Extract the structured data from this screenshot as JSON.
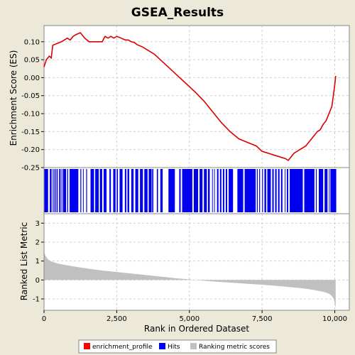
{
  "chart_data": {
    "type": "line",
    "title": "GSEA_Results",
    "x_axis": {
      "label": "Rank in Ordered Dataset",
      "range": [
        0,
        10500
      ],
      "ticks": [
        0,
        2500,
        5000,
        7500,
        10000
      ],
      "tick_labels": [
        "0",
        "2,500",
        "5,000",
        "7,500",
        "10,000"
      ]
    },
    "panels": {
      "enrichment": {
        "ylabel": "Enrichment Score (ES)",
        "ylim": [
          -0.25,
          0.145
        ],
        "yticks": [
          0.1,
          0.05,
          0.0,
          -0.05,
          -0.1,
          -0.15,
          -0.2,
          -0.25
        ],
        "ytick_labels": [
          "0.10",
          "0.05",
          "0.00",
          "-0.05",
          "-0.10",
          "-0.15",
          "-0.20",
          "-0.25"
        ],
        "grid": true,
        "line_color": "#dd0000",
        "profile": {
          "x": [
            0,
            80,
            180,
            250,
            300,
            450,
            600,
            800,
            900,
            1000,
            1100,
            1250,
            1400,
            1550,
            1700,
            1850,
            2000,
            2100,
            2200,
            2300,
            2400,
            2500,
            2600,
            2700,
            2800,
            2900,
            3000,
            3100,
            3200,
            3400,
            3600,
            3800,
            4000,
            4200,
            4400,
            4600,
            4800,
            5000,
            5200,
            5500,
            5800,
            6100,
            6400,
            6700,
            7000,
            7300,
            7500,
            7700,
            7900,
            8100,
            8300,
            8400,
            8500,
            8600,
            8800,
            9000,
            9200,
            9400,
            9500,
            9600,
            9700,
            9800,
            9900,
            9950,
            10000,
            10030
          ],
          "y": [
            0.03,
            0.05,
            0.06,
            0.055,
            0.09,
            0.095,
            0.1,
            0.11,
            0.105,
            0.115,
            0.12,
            0.125,
            0.11,
            0.1,
            0.1,
            0.1,
            0.1,
            0.115,
            0.11,
            0.115,
            0.11,
            0.115,
            0.112,
            0.108,
            0.105,
            0.105,
            0.1,
            0.098,
            0.092,
            0.085,
            0.075,
            0.065,
            0.05,
            0.035,
            0.02,
            0.005,
            -0.01,
            -0.025,
            -0.04,
            -0.065,
            -0.095,
            -0.125,
            -0.15,
            -0.17,
            -0.18,
            -0.19,
            -0.205,
            -0.21,
            -0.215,
            -0.22,
            -0.225,
            -0.23,
            -0.22,
            -0.21,
            -0.2,
            -0.19,
            -0.17,
            -0.15,
            -0.145,
            -0.13,
            -0.12,
            -0.1,
            -0.08,
            -0.05,
            -0.02,
            0.005
          ]
        }
      },
      "hits": {
        "bar_color": "#0000ee",
        "clusters": [
          [
            10,
            140
          ],
          [
            200,
            260
          ],
          [
            300,
            330
          ],
          [
            360,
            400
          ],
          [
            430,
            470
          ],
          [
            520,
            570
          ],
          [
            600,
            620
          ],
          [
            650,
            760
          ],
          [
            800,
            830
          ],
          [
            880,
            1180
          ],
          [
            1250,
            1280
          ],
          [
            1340,
            1360
          ],
          [
            1450,
            1480
          ],
          [
            1600,
            1720
          ],
          [
            1760,
            1880
          ],
          [
            1920,
            2000
          ],
          [
            2050,
            2150
          ],
          [
            2250,
            2300
          ],
          [
            2380,
            2460
          ],
          [
            2500,
            2540
          ],
          [
            2600,
            2700
          ],
          [
            2780,
            2830
          ],
          [
            2870,
            2930
          ],
          [
            3000,
            3080
          ],
          [
            3140,
            3240
          ],
          [
            3300,
            3400
          ],
          [
            3450,
            3560
          ],
          [
            3600,
            3700
          ],
          [
            3720,
            3760
          ],
          [
            3880,
            3920
          ],
          [
            4000,
            4080
          ],
          [
            4280,
            4500
          ],
          [
            4650,
            4700
          ],
          [
            4750,
            5100
          ],
          [
            5150,
            5300
          ],
          [
            5350,
            5450
          ],
          [
            5500,
            5600
          ],
          [
            5640,
            5700
          ],
          [
            5780,
            5800
          ],
          [
            5850,
            5870
          ],
          [
            5950,
            6000
          ],
          [
            6050,
            6100
          ],
          [
            6150,
            6200
          ],
          [
            6250,
            6300
          ],
          [
            6350,
            6500
          ],
          [
            6650,
            6850
          ],
          [
            6900,
            7280
          ],
          [
            7320,
            7350
          ],
          [
            7400,
            7430
          ],
          [
            7500,
            7530
          ],
          [
            7580,
            7640
          ],
          [
            7680,
            7800
          ],
          [
            7850,
            7900
          ],
          [
            7950,
            8000
          ],
          [
            8050,
            8100
          ],
          [
            8150,
            8200
          ],
          [
            8280,
            8300
          ],
          [
            8350,
            8400
          ],
          [
            8450,
            8900
          ],
          [
            8950,
            9300
          ],
          [
            9350,
            9380
          ],
          [
            9450,
            9600
          ],
          [
            9650,
            9750
          ],
          [
            9800,
            9820
          ],
          [
            9850,
            10050
          ]
        ]
      },
      "ranked_metric": {
        "ylabel": "Ranked List Metric",
        "ylim": [
          -1.6,
          3.5
        ],
        "yticks": [
          3,
          2,
          1,
          0,
          -1
        ],
        "ytick_labels": [
          "3",
          "2",
          "1",
          "0",
          "-1"
        ],
        "grid": true,
        "fill_color": "#c0c0c0",
        "x": [
          0,
          20,
          60,
          120,
          200,
          300,
          400,
          500,
          700,
          1000,
          1500,
          2000,
          2500,
          3000,
          3500,
          4000,
          4500,
          5000,
          5500,
          6000,
          6500,
          7000,
          7500,
          8000,
          8500,
          9000,
          9300,
          9600,
          9800,
          9900,
          9960,
          10000,
          10030
        ],
        "y": [
          1.6,
          1.4,
          1.25,
          1.12,
          1.02,
          0.95,
          0.9,
          0.86,
          0.8,
          0.72,
          0.6,
          0.5,
          0.42,
          0.34,
          0.26,
          0.18,
          0.1,
          0.03,
          -0.04,
          -0.1,
          -0.15,
          -0.2,
          -0.25,
          -0.31,
          -0.38,
          -0.46,
          -0.53,
          -0.62,
          -0.72,
          -0.85,
          -1.0,
          -1.2,
          -1.5
        ]
      }
    },
    "legend": {
      "position": "bottom",
      "entries": [
        {
          "label": "enrichment_profile",
          "color": "#ff0000"
        },
        {
          "label": "Hits",
          "color": "#0000ff"
        },
        {
          "label": "Ranking metric scores",
          "color": "#c0c0c0"
        }
      ]
    }
  }
}
